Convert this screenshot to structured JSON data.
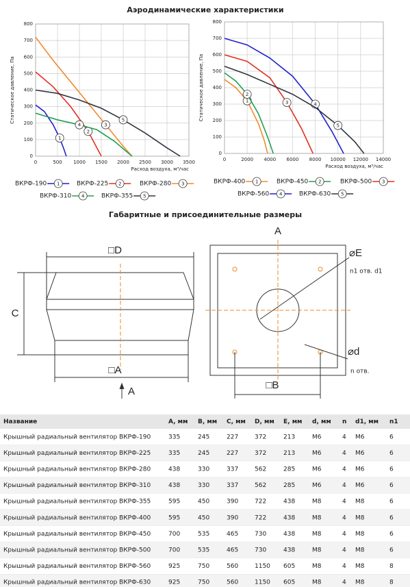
{
  "header": {
    "title": "Аэродинамические характеристики",
    "subtitle": "Габаритные и присоединительные размеры"
  },
  "chart_data": [
    {
      "type": "line",
      "xlabel": "Расход воздуха, м³/час",
      "ylabel": "Статическое давление, Па",
      "xlim": [
        0,
        3500
      ],
      "ylim": [
        0,
        800
      ],
      "xticks": [
        0,
        500,
        1000,
        1500,
        2000,
        2500,
        3000,
        3500
      ],
      "yticks": [
        0,
        100,
        200,
        300,
        400,
        500,
        600,
        700,
        800
      ],
      "grid": true,
      "series": [
        {
          "name": "ВКРФ-190",
          "number": "1",
          "color": "#1f1fd0",
          "x": [
            0,
            200,
            400,
            550,
            650,
            700
          ],
          "values": [
            310,
            270,
            190,
            110,
            40,
            0
          ]
        },
        {
          "name": "ВКРФ-225",
          "number": "2",
          "color": "#e03020",
          "x": [
            0,
            400,
            800,
            1200,
            1500
          ],
          "values": [
            510,
            420,
            300,
            150,
            0
          ]
        },
        {
          "name": "ВКРФ-280",
          "number": "3",
          "color": "#f08a2a",
          "x": [
            0,
            400,
            800,
            1200,
            1600,
            2000,
            2200
          ],
          "values": [
            720,
            580,
            450,
            320,
            190,
            60,
            0
          ]
        },
        {
          "name": "ВКРФ-310",
          "number": "4",
          "color": "#20a050",
          "x": [
            0,
            500,
            1000,
            1400,
            1800,
            2200
          ],
          "values": [
            260,
            220,
            190,
            160,
            90,
            0
          ]
        },
        {
          "name": "ВКРФ-355",
          "number": "5",
          "color": "#303540",
          "x": [
            0,
            500,
            1000,
            1500,
            2000,
            2500,
            3000,
            3300
          ],
          "values": [
            400,
            380,
            340,
            290,
            220,
            140,
            50,
            0
          ]
        }
      ]
    },
    {
      "type": "line",
      "xlabel": "Расход воздуха, м³/час",
      "ylabel": "Статическое давление, Па",
      "xlim": [
        0,
        14000
      ],
      "ylim": [
        0,
        800
      ],
      "xticks": [
        0,
        2000,
        4000,
        6000,
        8000,
        10000,
        12000,
        14000
      ],
      "yticks": [
        0,
        100,
        200,
        300,
        400,
        500,
        600,
        700,
        800
      ],
      "grid": true,
      "series": [
        {
          "name": "ВКРФ-400",
          "number": "1",
          "color": "#f08a2a",
          "x": [
            0,
            1000,
            2000,
            3000,
            3500,
            3800
          ],
          "values": [
            450,
            400,
            320,
            180,
            80,
            0
          ]
        },
        {
          "name": "ВКРФ-450",
          "number": "2",
          "color": "#20a050",
          "x": [
            0,
            1000,
            2000,
            3000,
            3800,
            4300
          ],
          "values": [
            490,
            440,
            360,
            240,
            100,
            0
          ]
        },
        {
          "name": "ВКРФ-500",
          "number": "3",
          "color": "#e03020",
          "x": [
            0,
            2000,
            4000,
            5500,
            6800,
            7800
          ],
          "values": [
            600,
            560,
            460,
            310,
            150,
            0
          ]
        },
        {
          "name": "ВКРФ-560",
          "number": "4",
          "color": "#1f1fd0",
          "x": [
            0,
            2000,
            4000,
            6000,
            8000,
            9500,
            10500
          ],
          "values": [
            700,
            660,
            580,
            470,
            300,
            130,
            0
          ]
        },
        {
          "name": "ВКРФ-630",
          "number": "5",
          "color": "#303540",
          "x": [
            0,
            2000,
            4000,
            6000,
            8000,
            10000,
            11500,
            12300
          ],
          "values": [
            530,
            480,
            420,
            360,
            280,
            170,
            70,
            0
          ]
        }
      ]
    }
  ],
  "drawing": {
    "side_d": "□D",
    "side_c": "C",
    "side_a": "□A",
    "view_a": "A",
    "top_a": "A",
    "top_e": "⌀E",
    "top_holes1": "n1 отв. d1",
    "top_d": "⌀d",
    "top_holes": "n отв.",
    "top_b": "□B"
  },
  "table": {
    "columns": [
      "Название",
      "A, мм",
      "B, мм",
      "C, мм",
      "D, мм",
      "E, мм",
      "d, мм",
      "n",
      "d1, мм",
      "n1"
    ],
    "rows": [
      [
        "Крышный радиальный вентилятор ВКРФ-190",
        335,
        245,
        227,
        372,
        213,
        "M6",
        4,
        "M6",
        6
      ],
      [
        "Крышный радиальный вентилятор ВКРФ-225",
        335,
        245,
        227,
        372,
        213,
        "M6",
        4,
        "M6",
        6
      ],
      [
        "Крышный радиальный вентилятор ВКРФ-280",
        438,
        330,
        337,
        562,
        285,
        "M6",
        4,
        "M6",
        6
      ],
      [
        "Крышный радиальный вентилятор ВКРФ-310",
        438,
        330,
        337,
        562,
        285,
        "M6",
        4,
        "M6",
        6
      ],
      [
        "Крышный радиальный вентилятор ВКРФ-355",
        595,
        450,
        390,
        722,
        438,
        "M8",
        4,
        "M8",
        6
      ],
      [
        "Крышный радиальный вентилятор ВКРФ-400",
        595,
        450,
        390,
        722,
        438,
        "M8",
        4,
        "M8",
        6
      ],
      [
        "Крышный радиальный вентилятор ВКРФ-450",
        700,
        535,
        465,
        730,
        438,
        "M8",
        4,
        "M8",
        6
      ],
      [
        "Крышный радиальный вентилятор ВКРФ-500",
        700,
        535,
        465,
        730,
        438,
        "M8",
        4,
        "M8",
        6
      ],
      [
        "Крышный радиальный вентилятор ВКРФ-560",
        925,
        750,
        560,
        1150,
        605,
        "M8",
        4,
        "M8",
        8
      ],
      [
        "Крышный радиальный вентилятор ВКРФ-630",
        925,
        750,
        560,
        1150,
        605,
        "M8",
        4,
        "M8",
        8
      ]
    ]
  }
}
